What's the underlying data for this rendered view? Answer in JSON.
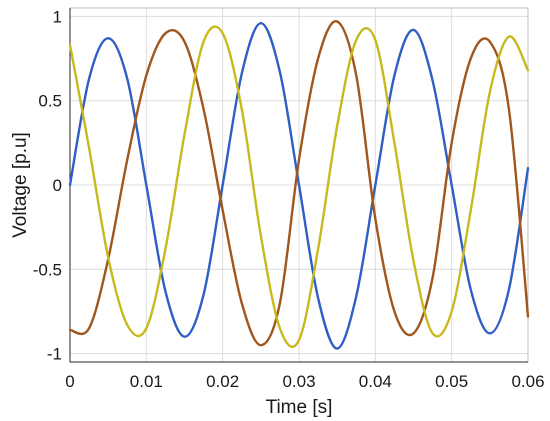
{
  "chart_data": {
    "type": "line",
    "title": "",
    "xlabel": "Time [s]",
    "ylabel": "Voltage [p.u]",
    "xlim": [
      0,
      0.06
    ],
    "ylim": [
      -1.05,
      1.05
    ],
    "xticks": [
      0,
      0.01,
      0.02,
      0.03,
      0.04,
      0.05,
      0.06
    ],
    "xtick_labels": [
      "0",
      "0.01",
      "0.02",
      "0.03",
      "0.04",
      "0.05",
      "0.06"
    ],
    "yticks": [
      -1,
      -0.5,
      0,
      0.5,
      1
    ],
    "ytick_labels": [
      "-1",
      "-0.5",
      "0",
      "0.5",
      "1"
    ],
    "grid": true,
    "legend": "none",
    "series": [
      {
        "color": "#2f5fc4",
        "x": [
          0,
          0.0025,
          0.005,
          0.0075,
          0.01,
          0.0125,
          0.015,
          0.0175,
          0.02,
          0.0225,
          0.025,
          0.0275,
          0.03,
          0.0325,
          0.035,
          0.0375,
          0.04,
          0.0425,
          0.045,
          0.0475,
          0.05,
          0.0525,
          0.055,
          0.0575,
          0.06
        ],
        "y": [
          0.0,
          0.63,
          0.87,
          0.63,
          0.0,
          -0.63,
          -0.9,
          -0.65,
          0.0,
          0.66,
          0.96,
          0.67,
          0.0,
          -0.67,
          -0.97,
          -0.66,
          0.0,
          0.65,
          0.92,
          0.62,
          0.0,
          -0.62,
          -0.88,
          -0.62,
          0.1
        ]
      },
      {
        "color": "#a0561d",
        "x": [
          0,
          0.0025,
          0.005,
          0.0075,
          0.01,
          0.0125,
          0.015,
          0.0175,
          0.02,
          0.0225,
          0.025,
          0.0275,
          0.03,
          0.0325,
          0.035,
          0.0375,
          0.04,
          0.0425,
          0.045,
          0.0475,
          0.05,
          0.0525,
          0.055,
          0.0575,
          0.06
        ],
        "y": [
          -0.86,
          -0.85,
          -0.44,
          0.15,
          0.65,
          0.9,
          0.85,
          0.45,
          -0.15,
          -0.7,
          -0.95,
          -0.7,
          0.15,
          0.75,
          0.97,
          0.65,
          -0.2,
          -0.75,
          -0.88,
          -0.55,
          0.25,
          0.75,
          0.85,
          0.45,
          -0.78
        ]
      },
      {
        "color": "#c8b91e",
        "x": [
          0,
          0.0025,
          0.005,
          0.0075,
          0.01,
          0.0125,
          0.015,
          0.0175,
          0.02,
          0.0225,
          0.025,
          0.0275,
          0.03,
          0.0325,
          0.035,
          0.0375,
          0.04,
          0.0425,
          0.045,
          0.0475,
          0.05,
          0.0525,
          0.055,
          0.0575,
          0.06
        ],
        "y": [
          0.83,
          0.22,
          -0.43,
          -0.83,
          -0.85,
          -0.38,
          0.3,
          0.85,
          0.9,
          0.45,
          -0.3,
          -0.85,
          -0.92,
          -0.38,
          0.35,
          0.86,
          0.86,
          0.25,
          -0.45,
          -0.88,
          -0.75,
          -0.15,
          0.55,
          0.88,
          0.68
        ]
      }
    ]
  }
}
